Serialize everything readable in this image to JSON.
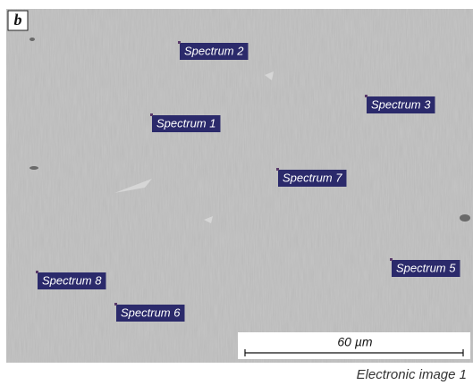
{
  "panel_label": "b",
  "spectrum_labels": [
    "Spectrum 2",
    "Spectrum 3",
    "Spectrum 1",
    "Spectrum 7",
    "Spectrum 8",
    "Spectrum 5",
    "Spectrum 6"
  ],
  "scale_bar": {
    "label": "60 µm"
  },
  "caption": "Electronic image 1"
}
